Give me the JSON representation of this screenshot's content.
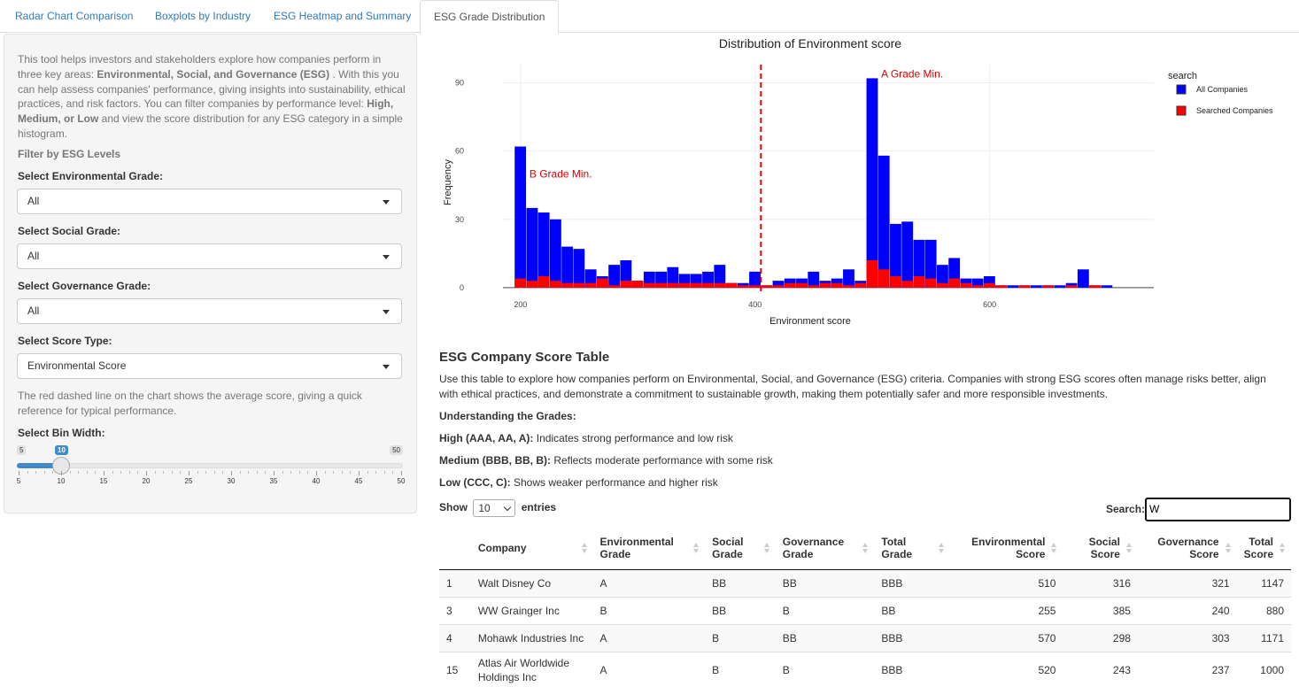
{
  "tabs": [
    {
      "label": "Radar Chart Comparison",
      "active": false
    },
    {
      "label": "Boxplots by Industry",
      "active": false
    },
    {
      "label": "ESG Heatmap and Summary",
      "active": false
    },
    {
      "label": "ESG Grade Distribution",
      "active": true
    }
  ],
  "sidebar": {
    "intro_1": "This tool helps investors and stakeholders explore how companies perform in three key areas: ",
    "intro_bold_1": "Environmental, Social, and Governance (ESG)",
    "intro_2": " . With this you can help assess companies' performance, giving insights into sustainability, ethical practices, and risk factors. You can filter companies by performance level: ",
    "intro_bold_2": "High, Medium, or Low",
    "intro_3": " and view the score distribution for any ESG category in a simple histogram.",
    "filter_heading": "Filter by ESG Levels",
    "env_label": "Select Environmental Grade:",
    "env_value": "All",
    "soc_label": "Select Social Grade:",
    "soc_value": "All",
    "gov_label": "Select Governance Grade:",
    "gov_value": "All",
    "score_label": "Select Score Type:",
    "score_value": "Environmental Score",
    "note": "The red dashed line on the chart shows the average score, giving a quick reference for typical performance.",
    "bin_label": "Select Bin Width:",
    "slider": {
      "min": "5",
      "max": "50",
      "value": 10,
      "value_label": "10",
      "ticks": [
        "5",
        "10",
        "15",
        "20",
        "25",
        "30",
        "35",
        "40",
        "45",
        "50"
      ]
    }
  },
  "chart_data": {
    "type": "bar",
    "title": "Distribution of Environment score",
    "xlabel": "Environment score",
    "ylabel": "Frequency",
    "xlim": [
      185,
      740
    ],
    "ylim": [
      -2,
      98
    ],
    "x_ticks": [
      "200",
      "400",
      "600"
    ],
    "x_tick_values": [
      200,
      400,
      600
    ],
    "y_ticks": [
      "0",
      "30",
      "60",
      "90"
    ],
    "y_tick_values": [
      0,
      30,
      60,
      90
    ],
    "bin_width": 10,
    "legend_title": "search",
    "legend_position": "top-right",
    "series": [
      {
        "name": "All Companies",
        "color": "#0000ff",
        "bins": [
          [
            200,
            62
          ],
          [
            210,
            35
          ],
          [
            220,
            33
          ],
          [
            230,
            30
          ],
          [
            240,
            18
          ],
          [
            250,
            17
          ],
          [
            260,
            8
          ],
          [
            270,
            5
          ],
          [
            280,
            10
          ],
          [
            290,
            12
          ],
          [
            300,
            3
          ],
          [
            310,
            7
          ],
          [
            320,
            7
          ],
          [
            330,
            9
          ],
          [
            340,
            6
          ],
          [
            350,
            6
          ],
          [
            360,
            7
          ],
          [
            370,
            10
          ],
          [
            380,
            2
          ],
          [
            390,
            2
          ],
          [
            400,
            7
          ],
          [
            410,
            1
          ],
          [
            420,
            3
          ],
          [
            430,
            4
          ],
          [
            440,
            4
          ],
          [
            450,
            7
          ],
          [
            460,
            3
          ],
          [
            470,
            4
          ],
          [
            480,
            8
          ],
          [
            490,
            3
          ],
          [
            500,
            92
          ],
          [
            510,
            58
          ],
          [
            520,
            28
          ],
          [
            530,
            29
          ],
          [
            540,
            21
          ],
          [
            550,
            21
          ],
          [
            560,
            10
          ],
          [
            570,
            13
          ],
          [
            580,
            4
          ],
          [
            590,
            4
          ],
          [
            600,
            5
          ],
          [
            610,
            1
          ],
          [
            620,
            1
          ],
          [
            630,
            1
          ],
          [
            640,
            1
          ],
          [
            650,
            1
          ],
          [
            660,
            1
          ],
          [
            670,
            2
          ],
          [
            680,
            8
          ],
          [
            690,
            1
          ],
          [
            700,
            1
          ]
        ]
      },
      {
        "name": "Searched Companies",
        "color": "#ff0000",
        "bins": [
          [
            200,
            4
          ],
          [
            210,
            3
          ],
          [
            220,
            5
          ],
          [
            230,
            3
          ],
          [
            240,
            2
          ],
          [
            250,
            2
          ],
          [
            260,
            2
          ],
          [
            270,
            4
          ],
          [
            280,
            1
          ],
          [
            290,
            3
          ],
          [
            300,
            3
          ],
          [
            310,
            2
          ],
          [
            320,
            2
          ],
          [
            330,
            2
          ],
          [
            340,
            2
          ],
          [
            350,
            2
          ],
          [
            360,
            2
          ],
          [
            370,
            2
          ],
          [
            380,
            2
          ],
          [
            390,
            1
          ],
          [
            400,
            1
          ],
          [
            410,
            1
          ],
          [
            420,
            1
          ],
          [
            430,
            2
          ],
          [
            440,
            2
          ],
          [
            450,
            1
          ],
          [
            460,
            2
          ],
          [
            470,
            2
          ],
          [
            480,
            1
          ],
          [
            490,
            2
          ],
          [
            500,
            12
          ],
          [
            510,
            8
          ],
          [
            520,
            5
          ],
          [
            530,
            3
          ],
          [
            540,
            5
          ],
          [
            550,
            4
          ],
          [
            560,
            2
          ],
          [
            570,
            4
          ],
          [
            580,
            2
          ],
          [
            590,
            1
          ],
          [
            600,
            2
          ],
          [
            610,
            1
          ],
          [
            630,
            1
          ],
          [
            650,
            1
          ],
          [
            670,
            1
          ],
          [
            690,
            1
          ]
        ]
      }
    ],
    "average_line": {
      "x": 405,
      "color": "#e00000"
    },
    "annotations": [
      {
        "text": "A Grade Min.",
        "x": 500,
        "y": 92
      },
      {
        "text": "B Grade Min.",
        "x": 200,
        "y": 48
      }
    ]
  },
  "table_section": {
    "title": "ESG Company Score Table",
    "description": "Use this table to explore how companies perform on Environmental, Social, and Governance (ESG) criteria. Companies with strong ESG scores often manage risks better, align with ethical practices, and demonstrate a commitment to sustainable growth, making them potentially safer and more responsible investments.",
    "grades_heading": "Understanding the Grades:",
    "high_bold": "High (AAA, AA, A):",
    "high_text": " Indicates strong performance and low risk",
    "medium_bold": "Medium (BBB, BB, B):",
    "medium_text": " Reflects moderate performance with some risk",
    "low_bold": "Low (CCC, C):",
    "low_text": " Shows weaker performance and higher risk",
    "show_label": "Show",
    "entries_value": "10",
    "entries_label": "entries",
    "search_label": "Search:",
    "search_value": "W"
  },
  "table": {
    "headers": [
      "",
      "Company",
      "Environmental Grade",
      "Social Grade",
      "Governance Grade",
      "Total Grade",
      "Environmental Score",
      "Social Score",
      "Governance Score",
      "Total Score"
    ],
    "rows": [
      [
        "1",
        "Walt Disney Co",
        "A",
        "BB",
        "BB",
        "BBB",
        "510",
        "316",
        "321",
        "1147"
      ],
      [
        "3",
        "WW Grainger Inc",
        "B",
        "BB",
        "B",
        "BB",
        "255",
        "385",
        "240",
        "880"
      ],
      [
        "4",
        "Mohawk Industries Inc",
        "A",
        "B",
        "BB",
        "BBB",
        "570",
        "298",
        "303",
        "1171"
      ],
      [
        "15",
        "Atlas Air Worldwide Holdings Inc",
        "A",
        "B",
        "B",
        "BBB",
        "520",
        "243",
        "237",
        "1000"
      ]
    ]
  }
}
